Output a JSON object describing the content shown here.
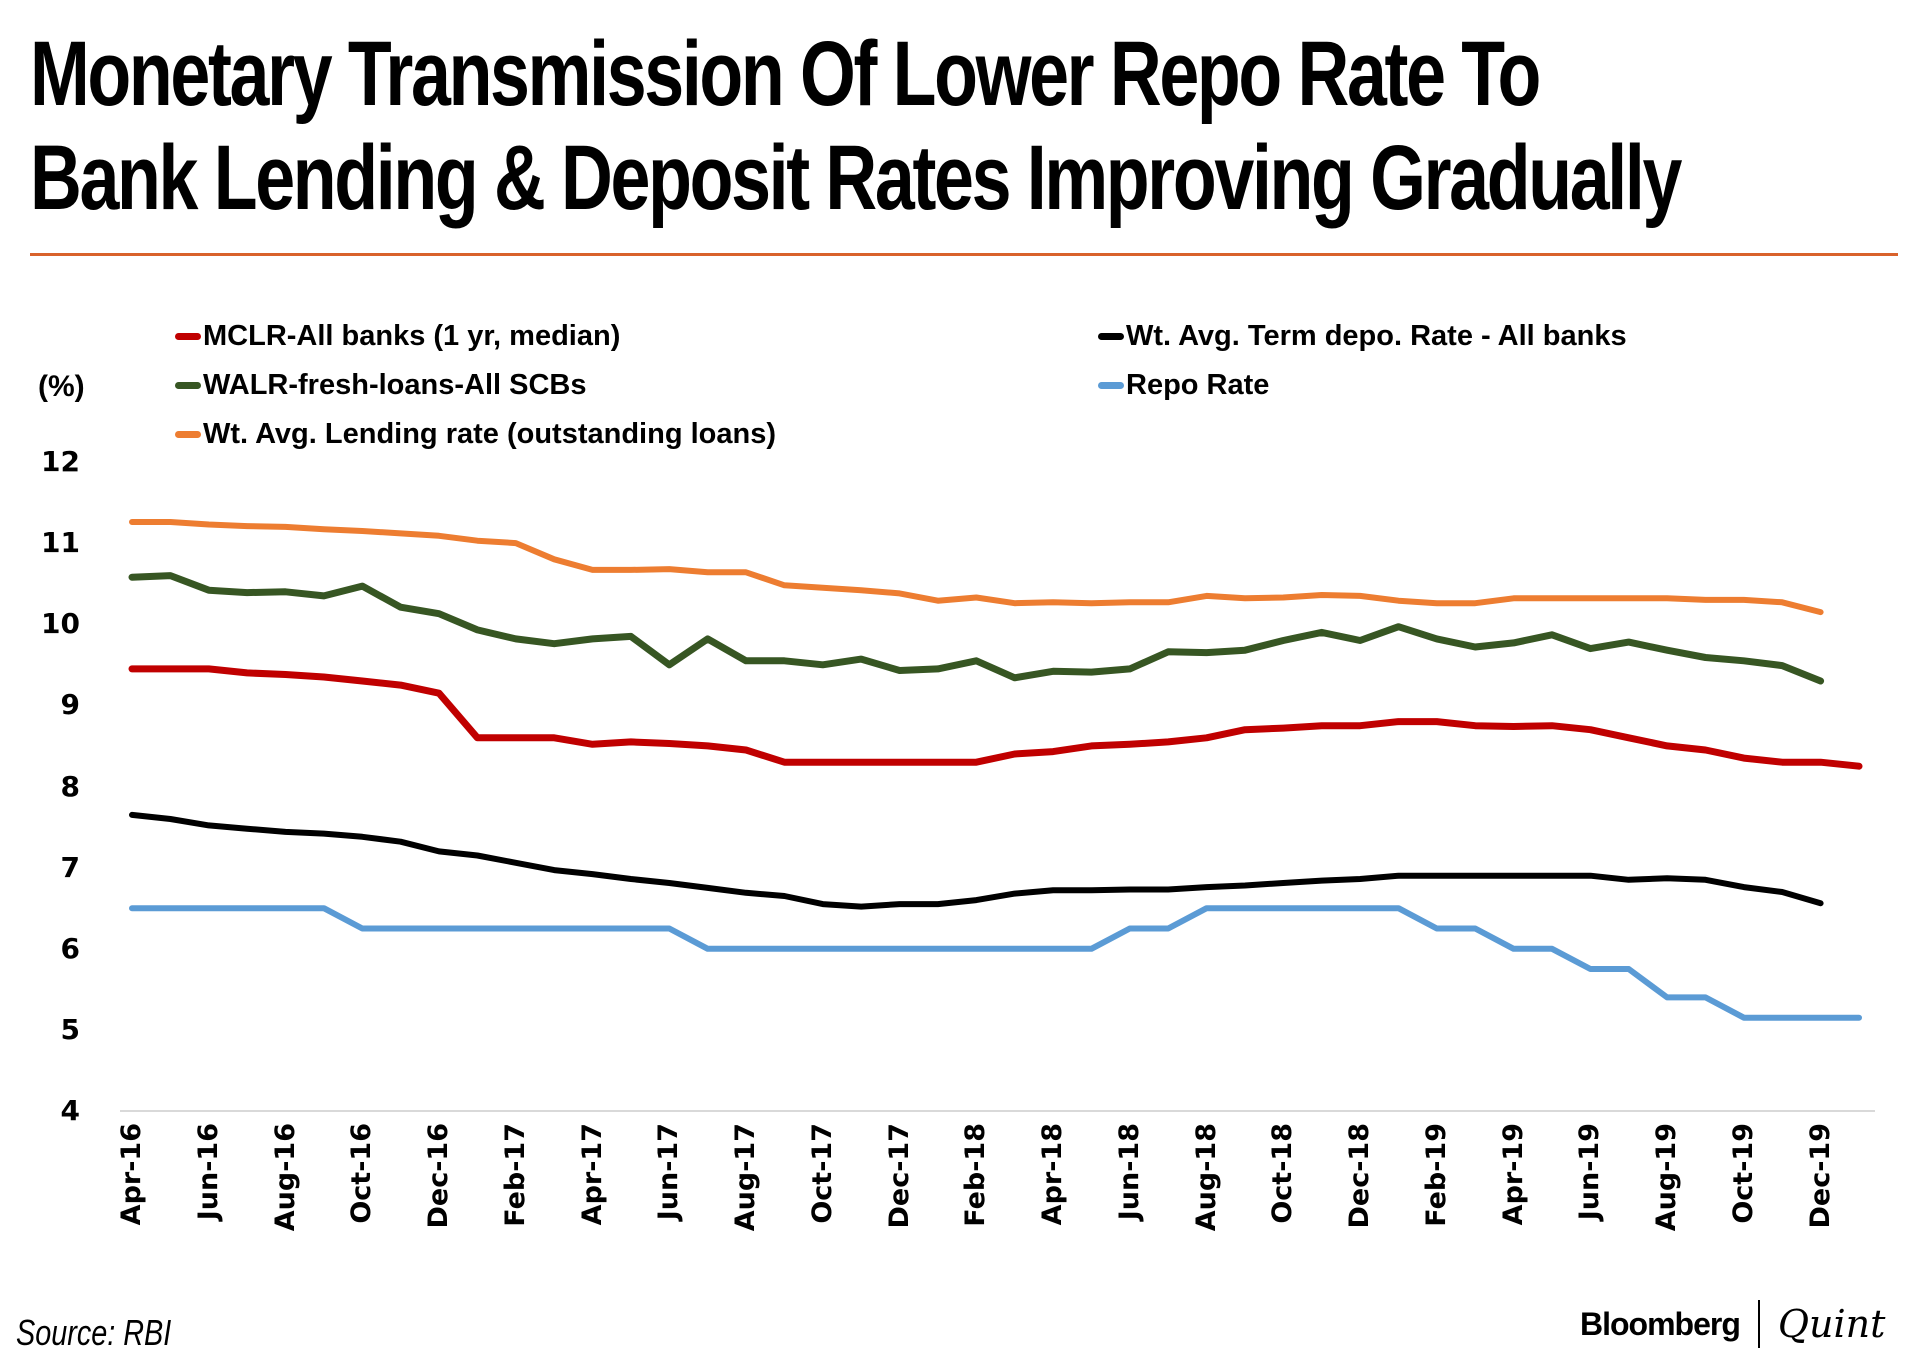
{
  "header": {
    "title_line1": "Monetary Transmission Of Lower Repo Rate To",
    "title_line2": "Bank Lending & Deposit Rates Improving Gradually"
  },
  "footer": {
    "source": "Source: RBI",
    "logo_left": "Bloomberg",
    "logo_right": "Quint"
  },
  "colors": {
    "accent_rule": "#d9622b",
    "mclr": "#c00000",
    "walr": "#375623",
    "lending_outstanding": "#ed7d31",
    "term_deposit": "#000000",
    "repo": "#5b9bd5",
    "axis": "#d9d9d9"
  },
  "chart_data": {
    "type": "line",
    "title": "Monetary Transmission Of Lower Repo Rate To Bank Lending & Deposit Rates Improving Gradually",
    "ylabel": "(%)",
    "xlabel": "",
    "ylim": [
      4,
      12
    ],
    "yticks": [
      "4",
      "5",
      "6",
      "7",
      "8",
      "9",
      "10",
      "11",
      "12"
    ],
    "grid": false,
    "legend_position": "top",
    "x": [
      "Apr-16",
      "May-16",
      "Jun-16",
      "Jul-16",
      "Aug-16",
      "Sep-16",
      "Oct-16",
      "Nov-16",
      "Dec-16",
      "Jan-17",
      "Feb-17",
      "Mar-17",
      "Apr-17",
      "May-17",
      "Jun-17",
      "Jul-17",
      "Aug-17",
      "Sep-17",
      "Oct-17",
      "Nov-17",
      "Dec-17",
      "Jan-18",
      "Feb-18",
      "Mar-18",
      "Apr-18",
      "May-18",
      "Jun-18",
      "Jul-18",
      "Aug-18",
      "Sep-18",
      "Oct-18",
      "Nov-18",
      "Dec-18",
      "Jan-19",
      "Feb-19",
      "Mar-19",
      "Apr-19",
      "May-19",
      "Jun-19",
      "Jul-19",
      "Aug-19",
      "Sep-19",
      "Oct-19",
      "Nov-19",
      "Dec-19",
      "Jan-20"
    ],
    "xtick_labels": [
      "Apr-16",
      "Jun-16",
      "Aug-16",
      "Oct-16",
      "Dec-16",
      "Feb-17",
      "Apr-17",
      "Jun-17",
      "Aug-17",
      "Oct-17",
      "Dec-17",
      "Feb-18",
      "Apr-18",
      "Jun-18",
      "Aug-18",
      "Oct-18",
      "Dec-18",
      "Feb-19",
      "Apr-19",
      "Jun-19",
      "Aug-19",
      "Oct-19",
      "Dec-19"
    ],
    "series": [
      {
        "name": "MCLR-All banks (1 yr, median)",
        "color_key": "mclr",
        "values": [
          9.45,
          9.45,
          9.45,
          9.4,
          9.38,
          9.35,
          9.3,
          9.25,
          9.15,
          8.6,
          8.6,
          8.6,
          8.52,
          8.55,
          8.53,
          8.5,
          8.45,
          8.3,
          8.3,
          8.3,
          8.3,
          8.3,
          8.3,
          8.4,
          8.43,
          8.5,
          8.52,
          8.55,
          8.6,
          8.7,
          8.72,
          8.75,
          8.75,
          8.8,
          8.8,
          8.75,
          8.74,
          8.75,
          8.7,
          8.6,
          8.5,
          8.45,
          8.35,
          8.3,
          8.3,
          8.25
        ]
      },
      {
        "name": "WALR-fresh-loans-All SCBs",
        "color_key": "walr",
        "values": [
          10.58,
          10.6,
          10.42,
          10.39,
          10.4,
          10.35,
          10.47,
          10.21,
          10.13,
          9.93,
          9.82,
          9.76,
          9.82,
          9.85,
          9.5,
          9.82,
          9.55,
          9.55,
          9.5,
          9.57,
          9.43,
          9.45,
          9.55,
          9.34,
          9.42,
          9.41,
          9.45,
          9.66,
          9.65,
          9.68,
          9.8,
          9.9,
          9.8,
          9.97,
          9.82,
          9.72,
          9.77,
          9.87,
          9.7,
          9.78,
          9.68,
          9.59,
          9.55,
          9.49,
          9.3,
          null
        ]
      },
      {
        "name": "Wt. Avg. Lending rate (outstanding loans)",
        "color_key": "lending_outstanding",
        "values": [
          11.26,
          11.26,
          11.23,
          11.21,
          11.2,
          11.17,
          11.15,
          11.12,
          11.09,
          11.03,
          11.0,
          10.8,
          10.67,
          10.67,
          10.68,
          10.64,
          10.64,
          10.48,
          10.45,
          10.42,
          10.38,
          10.29,
          10.33,
          10.26,
          10.27,
          10.26,
          10.27,
          10.27,
          10.35,
          10.32,
          10.33,
          10.36,
          10.35,
          10.29,
          10.26,
          10.26,
          10.32,
          10.32,
          10.32,
          10.32,
          10.32,
          10.3,
          10.3,
          10.27,
          10.15,
          null
        ]
      },
      {
        "name": "Wt. Avg. Term depo. Rate - All banks",
        "color_key": "term_deposit",
        "values": [
          7.65,
          7.6,
          7.52,
          7.48,
          7.44,
          7.42,
          7.38,
          7.32,
          7.2,
          7.15,
          7.06,
          6.97,
          6.92,
          6.86,
          6.81,
          6.75,
          6.69,
          6.65,
          6.55,
          6.52,
          6.55,
          6.55,
          6.6,
          6.68,
          6.72,
          6.72,
          6.73,
          6.73,
          6.76,
          6.78,
          6.81,
          6.84,
          6.86,
          6.9,
          6.9,
          6.9,
          6.9,
          6.9,
          6.9,
          6.85,
          6.87,
          6.85,
          6.76,
          6.7,
          6.56,
          null
        ]
      },
      {
        "name": "Repo Rate",
        "color_key": "repo",
        "values": [
          6.5,
          6.5,
          6.5,
          6.5,
          6.5,
          6.5,
          6.25,
          6.25,
          6.25,
          6.25,
          6.25,
          6.25,
          6.25,
          6.25,
          6.25,
          6.0,
          6.0,
          6.0,
          6.0,
          6.0,
          6.0,
          6.0,
          6.0,
          6.0,
          6.0,
          6.0,
          6.25,
          6.25,
          6.5,
          6.5,
          6.5,
          6.5,
          6.5,
          6.5,
          6.25,
          6.25,
          6.0,
          6.0,
          5.75,
          5.75,
          5.4,
          5.4,
          5.15,
          5.15,
          5.15,
          5.15
        ]
      }
    ],
    "legend": {
      "left_column": [
        "MCLR-All banks (1 yr, median)",
        "WALR-fresh-loans-All SCBs",
        "Wt. Avg. Lending rate (outstanding loans)"
      ],
      "right_column": [
        "Wt. Avg. Term depo. Rate - All banks",
        "Repo Rate"
      ]
    }
  }
}
